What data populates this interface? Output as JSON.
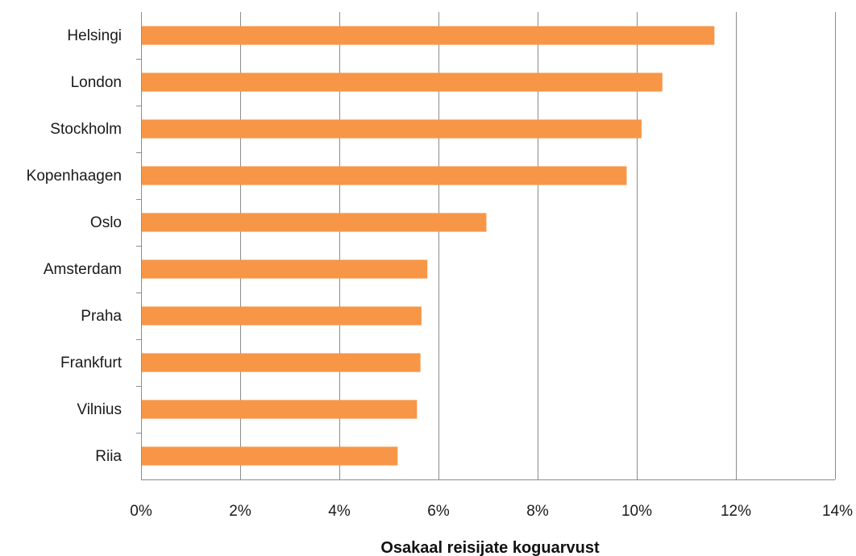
{
  "chart_data": {
    "type": "bar",
    "orientation": "horizontal",
    "categories": [
      "Helsingi",
      "London",
      "Stockholm",
      "Kopenhaagen",
      "Oslo",
      "Amsterdam",
      "Praha",
      "Frankfurt",
      "Vilnius",
      "Riia"
    ],
    "values": [
      11.55,
      10.5,
      10.08,
      9.78,
      6.95,
      5.76,
      5.64,
      5.62,
      5.55,
      5.16
    ],
    "xlabel": "Osakaal reisijate koguarvust",
    "ylabel": "",
    "xlim": [
      0,
      14
    ],
    "x_ticks": [
      "0%",
      "2%",
      "4%",
      "6%",
      "8%",
      "10%",
      "12%",
      "14%"
    ],
    "grid": "vertical",
    "legend": "none",
    "bar_color": "#F79646",
    "grid_color": "#8c8c8c"
  }
}
